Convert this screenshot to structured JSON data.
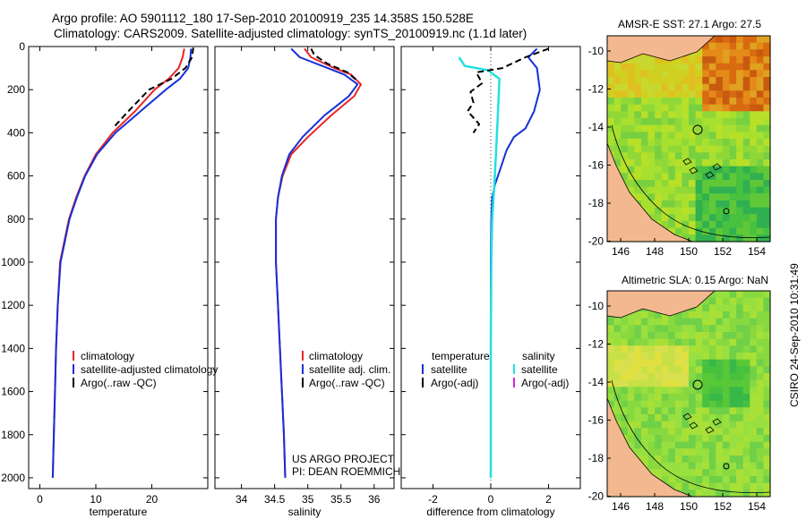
{
  "title_line1": "Argo profile: AO 5901112_180 17-Sep-2010 20100919_235 14.358S 150.528E",
  "title_line2": "Climatology: CARS2009. Satellite-adjusted climatology: synTS_20100919.nc (1.1d later)",
  "footer_stamp": "CSIRO 24-Sep-2010 10:31:49",
  "colors": {
    "climatology": "#e8262a",
    "satellite": "#1530d8",
    "argo": "#000000",
    "salinity_sat": "#22e0e0",
    "salinity_argo": "#e020e0"
  },
  "chart_data": [
    {
      "type": "line",
      "name": "temperature-profile",
      "xlabel": "temperature",
      "ylabel": "",
      "xlim": [
        -2,
        30
      ],
      "ylim": [
        2050,
        0
      ],
      "xticks": [
        0,
        10,
        20
      ],
      "yticks": [
        0,
        200,
        400,
        600,
        800,
        1000,
        1200,
        1400,
        1600,
        1800,
        2000
      ],
      "legend": [
        "climatology",
        "satellite-adjusted climatology",
        "Argo(..raw -QC)"
      ],
      "series": [
        {
          "name": "climatology",
          "style": "red",
          "x": [
            25.8,
            25.5,
            24.8,
            23.0,
            20.5,
            17.0,
            13.0,
            10.0,
            8.0,
            6.5,
            5.2,
            4.4,
            3.6,
            3.2,
            2.9,
            2.7,
            2.5,
            2.4,
            2.3
          ],
          "y": [
            10,
            50,
            100,
            150,
            200,
            300,
            400,
            500,
            600,
            700,
            800,
            900,
            1000,
            1200,
            1400,
            1600,
            1800,
            1900,
            2000
          ]
        },
        {
          "name": "satellite",
          "style": "blue",
          "x": [
            27.0,
            26.9,
            26.5,
            25.0,
            22.5,
            18.0,
            13.5,
            10.2,
            8.1,
            6.6,
            5.3,
            4.5,
            3.7,
            3.2,
            2.9,
            2.7,
            2.5,
            2.4,
            2.3
          ],
          "y": [
            10,
            50,
            100,
            150,
            200,
            300,
            400,
            500,
            600,
            700,
            800,
            900,
            1000,
            1200,
            1400,
            1600,
            1800,
            1900,
            2000
          ]
        },
        {
          "name": "argo",
          "style": "black-dash",
          "x": [
            27.4,
            27.2,
            26.0,
            23.5,
            19.5,
            15.8,
            13.0
          ],
          "y": [
            5,
            50,
            100,
            150,
            200,
            300,
            380
          ]
        }
      ]
    },
    {
      "type": "line",
      "name": "salinity-profile",
      "xlabel": "salinity",
      "xlim": [
        33.6,
        36.3
      ],
      "ylim": [
        2050,
        0
      ],
      "xticks": [
        34,
        34.5,
        35,
        35.5,
        36
      ],
      "legend": [
        "climatology",
        "satellite adj. clim.",
        "Argo(..raw -QC)"
      ],
      "series": [
        {
          "name": "climatology",
          "style": "red",
          "x": [
            34.95,
            35.05,
            35.4,
            35.65,
            35.8,
            35.7,
            35.35,
            35.0,
            34.75,
            34.62,
            34.55,
            34.52,
            34.52,
            34.55,
            34.58,
            34.61,
            34.64,
            34.66
          ],
          "y": [
            10,
            50,
            100,
            130,
            175,
            230,
            320,
            420,
            500,
            600,
            700,
            800,
            1000,
            1200,
            1400,
            1600,
            1800,
            2000
          ]
        },
        {
          "name": "satellite",
          "style": "blue",
          "x": [
            34.75,
            34.88,
            35.3,
            35.55,
            35.75,
            35.62,
            35.25,
            34.92,
            34.72,
            34.61,
            34.55,
            34.52,
            34.52,
            34.55,
            34.58,
            34.61,
            34.64,
            34.66
          ],
          "y": [
            10,
            50,
            100,
            130,
            175,
            230,
            320,
            420,
            500,
            600,
            700,
            800,
            1000,
            1200,
            1400,
            1600,
            1800,
            2000
          ]
        },
        {
          "name": "argo",
          "style": "black-dash",
          "x": [
            35.05,
            35.1,
            35.3,
            35.6,
            35.75
          ],
          "y": [
            10,
            40,
            80,
            120,
            160
          ]
        }
      ]
    },
    {
      "type": "line",
      "name": "difference-profile",
      "xlabel": "difference from climatology",
      "xlim": [
        -3.1,
        3.1
      ],
      "ylim": [
        2050,
        0
      ],
      "xticks": [
        -2,
        0,
        2
      ],
      "legend_left_title": "temperature",
      "legend_left": [
        "satellite",
        "Argo(-adj)"
      ],
      "legend_right_title": "salinity",
      "legend_right": [
        "satellite",
        "Argo(-adj)"
      ],
      "series": [
        {
          "name": "temperature-satellite",
          "style": "blue",
          "x": [
            1.6,
            1.3,
            1.6,
            1.7,
            1.5,
            1.2,
            0.8,
            0.55,
            0.35,
            0.15,
            0.05,
            0.02,
            0.0,
            0.0,
            0.0,
            0.0
          ],
          "y": [
            10,
            50,
            100,
            200,
            300,
            380,
            420,
            480,
            560,
            640,
            700,
            800,
            1000,
            1400,
            1800,
            2000
          ]
        },
        {
          "name": "salinity-satellite",
          "style": "cyan",
          "x": [
            -1.1,
            -0.9,
            -0.1,
            0.3,
            0.25,
            0.18,
            0.12,
            0.05,
            0.02,
            0.0,
            0.0
          ],
          "y": [
            50,
            90,
            110,
            150,
            300,
            500,
            650,
            800,
            1000,
            1400,
            2000
          ]
        },
        {
          "name": "temperature-argo",
          "style": "black-dash",
          "x": [
            2.0,
            1.2,
            0.4,
            -0.5,
            -0.3,
            -0.7,
            -0.6,
            -0.8,
            -0.4,
            -0.6
          ],
          "y": [
            10,
            50,
            100,
            120,
            170,
            210,
            260,
            300,
            360,
            400
          ]
        }
      ]
    }
  ],
  "maps": [
    {
      "name": "sst-map",
      "title": "AMSR-E SST: 27.1 Argo: 27.5",
      "xticks": [
        "146",
        "148",
        "150",
        "152",
        "154"
      ],
      "yticks": [
        "-10",
        "-12",
        "-14",
        "-16",
        "-18",
        "-20"
      ]
    },
    {
      "name": "sla-map",
      "title": "Altimetric SLA: 0.15 Argo: NaN",
      "xticks": [
        "146",
        "148",
        "150",
        "152",
        "154"
      ],
      "yticks": [
        "-10",
        "-12",
        "-14",
        "-16",
        "-18",
        "-20"
      ]
    }
  ],
  "legend_labels": {
    "temp_climatology": "climatology",
    "temp_satellite": "satellite-adjusted climatology",
    "temp_argo": "Argo(..raw -QC)",
    "sal_climatology": "climatology",
    "sal_satellite": "satellite adj. clim.",
    "sal_argo": "Argo(..raw -QC)",
    "diff_temp_title": "temperature",
    "diff_sal_title": "salinity",
    "diff_temp_sat": "satellite",
    "diff_temp_argo": "Argo(-adj)",
    "diff_sal_sat": "satellite",
    "diff_sal_argo": "Argo(-adj)"
  },
  "project_text_1": "US ARGO PROJECT",
  "project_text_2": "PI: DEAN ROEMMICH"
}
